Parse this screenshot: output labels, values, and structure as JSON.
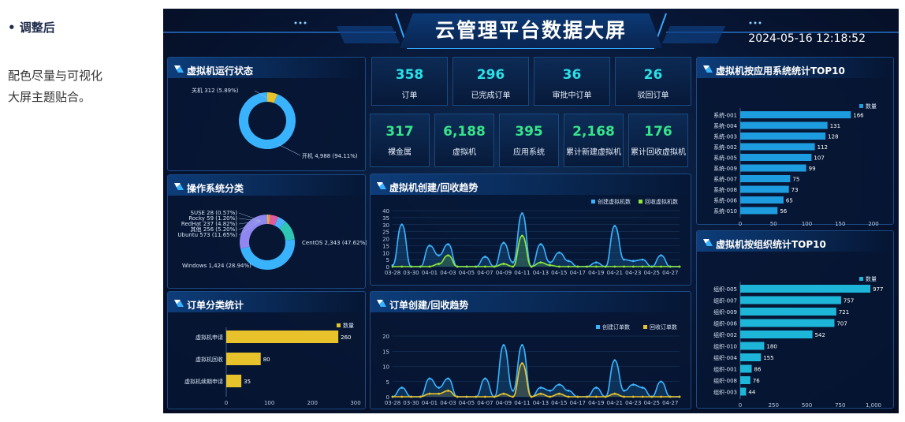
{
  "note": {
    "bullet": "• 调整后",
    "line1": "配色尽量与可视化",
    "line2": "大屏主题贴合。"
  },
  "header": {
    "title": "云管理平台数据大屏",
    "datetime": "2024-05-16  12:18:52"
  },
  "stats_row1": [
    {
      "value": "358",
      "label": "订单"
    },
    {
      "value": "296",
      "label": "已完成订单"
    },
    {
      "value": "36",
      "label": "审批中订单"
    },
    {
      "value": "26",
      "label": "驳回订单"
    }
  ],
  "stats_row2": [
    {
      "value": "317",
      "label": "裸金属"
    },
    {
      "value": "6,188",
      "label": "虚拟机"
    },
    {
      "value": "395",
      "label": "应用系统"
    },
    {
      "value": "2,168",
      "label": "累计新建虚拟机"
    },
    {
      "value": "176",
      "label": "累计回收虚拟机"
    }
  ],
  "panels": {
    "vm_status": "虚拟机运行状态",
    "os": "操作系统分类",
    "order_type": "订单分类统计",
    "vm_trend": "虚拟机创建/回收趋势",
    "order_trend": "订单创建/回收趋势",
    "app_top": "虚拟机按应用系统统计TOP10",
    "org_top": "虚拟机按组织统计TOP10"
  },
  "colors": {
    "cyan": "#29e1e6",
    "green": "#37e38a",
    "blue": "#3ab3ff",
    "yellow": "#e8c22a",
    "purple": "#8f86f0",
    "teal": "#2ec7b5"
  },
  "chart_data": [
    {
      "type": "pie",
      "id": "vm_status",
      "slices": [
        {
          "label": "关机",
          "value": 312,
          "pct": "5.89%"
        },
        {
          "label": "开机",
          "value": 4988,
          "pct": "94.11%"
        }
      ],
      "labels": [
        "关机 312 (5.89%)",
        "开机 4,988 (94.11%)"
      ]
    },
    {
      "type": "pie",
      "id": "os",
      "slices": [
        {
          "label": "SUSE",
          "value": 28,
          "pct": "0.57%"
        },
        {
          "label": "Rocky",
          "value": 59,
          "pct": "1.20%"
        },
        {
          "label": "RedHat",
          "value": 237,
          "pct": "4.82%"
        },
        {
          "label": "其他",
          "value": 256,
          "pct": "5.20%"
        },
        {
          "label": "Ubuntu",
          "value": 573,
          "pct": "11.65%"
        },
        {
          "label": "CentOS",
          "value": 2343,
          "pct": "47.62%"
        },
        {
          "label": "Windows",
          "value": 1424,
          "pct": "28.94%"
        }
      ],
      "labels": [
        "SUSE 28 (0.57%)",
        "Rocky 59 (1.20%)",
        "RedHat 237 (4.82%)",
        "其他 256 (5.20%)",
        "Ubuntu 573 (11.65%)",
        "CentOS 2,343 (47.62%)",
        "Windows 1,424 (28.94%)"
      ]
    },
    {
      "type": "bar",
      "id": "order_type",
      "orientation": "horizontal",
      "legend": "数量",
      "categories": [
        "虚拟机申请",
        "虚拟机回收",
        "虚拟机续期申请"
      ],
      "values": [
        260,
        80,
        35
      ],
      "ticks": [
        0,
        100,
        200,
        300
      ],
      "xlim": [
        0,
        300
      ]
    },
    {
      "type": "line",
      "id": "vm_trend",
      "x": [
        "03-28",
        "03-29",
        "03-30",
        "03-31",
        "04-01",
        "04-02",
        "04-03",
        "04-04",
        "04-05",
        "04-06",
        "04-07",
        "04-08",
        "04-09",
        "04-10",
        "04-11",
        "04-12",
        "04-13",
        "04-14",
        "04-15",
        "04-16",
        "04-17",
        "04-18",
        "04-19",
        "04-20",
        "04-21",
        "04-22",
        "04-23",
        "04-24",
        "04-25",
        "04-26",
        "04-27",
        "04-28"
      ],
      "xticks": [
        "03-28",
        "03-30",
        "04-01",
        "04-03",
        "04-05",
        "04-07",
        "04-09",
        "04-11",
        "04-13",
        "04-15",
        "04-17",
        "04-19",
        "04-21",
        "04-23",
        "04-25",
        "04-27"
      ],
      "series": [
        {
          "name": "创建虚拟机数",
          "values": [
            1,
            30,
            0,
            0,
            15,
            8,
            16,
            0,
            0,
            0,
            7,
            0,
            17,
            3,
            38,
            0,
            16,
            3,
            10,
            4,
            0,
            0,
            3,
            0,
            29,
            5,
            4,
            5,
            0,
            8,
            0,
            0
          ]
        },
        {
          "name": "回收虚拟机数",
          "values": [
            0,
            0,
            0,
            0,
            0,
            2,
            8,
            0,
            0,
            0,
            0,
            0,
            2,
            0,
            22,
            0,
            3,
            1,
            0,
            0,
            0,
            0,
            0,
            0,
            0,
            0,
            0,
            0,
            0,
            0,
            0,
            0
          ]
        }
      ],
      "ylim": [
        0,
        40
      ],
      "yticks": [
        0,
        5,
        10,
        15,
        20,
        25,
        30,
        35,
        40
      ]
    },
    {
      "type": "line",
      "id": "order_trend",
      "x": [
        "03-28",
        "03-29",
        "03-30",
        "03-31",
        "04-01",
        "04-02",
        "04-03",
        "04-04",
        "04-05",
        "04-06",
        "04-07",
        "04-08",
        "04-09",
        "04-10",
        "04-11",
        "04-12",
        "04-13",
        "04-14",
        "04-15",
        "04-16",
        "04-17",
        "04-18",
        "04-19",
        "04-20",
        "04-21",
        "04-22",
        "04-23",
        "04-24",
        "04-25",
        "04-26",
        "04-27",
        "04-28"
      ],
      "xticks": [
        "03-28",
        "03-30",
        "04-01",
        "04-03",
        "04-05",
        "04-07",
        "04-09",
        "04-11",
        "04-13",
        "04-15",
        "04-17",
        "04-19",
        "04-21",
        "04-23",
        "04-25",
        "04-27"
      ],
      "series": [
        {
          "name": "创建订单数",
          "values": [
            0,
            3,
            0,
            0,
            6,
            3,
            6,
            0,
            0,
            0,
            6,
            0,
            17,
            2,
            17,
            0,
            3,
            2,
            4,
            2,
            0,
            0,
            3,
            0,
            12,
            2,
            4,
            3,
            0,
            5,
            0,
            0
          ]
        },
        {
          "name": "回收订单数",
          "values": [
            0,
            0,
            0,
            0,
            1,
            1,
            2,
            0,
            0,
            0,
            0,
            0,
            1,
            0,
            11,
            0,
            1,
            0,
            1,
            0,
            0,
            0,
            0,
            0,
            1,
            0,
            0,
            0,
            0,
            0,
            0,
            0
          ]
        }
      ],
      "ylim": [
        0,
        20
      ],
      "yticks": [
        0,
        5,
        10,
        15,
        20
      ]
    },
    {
      "type": "bar",
      "id": "app_top",
      "orientation": "horizontal",
      "legend": "数量",
      "categories": [
        "系统-001",
        "系统-004",
        "系统-003",
        "系统-002",
        "系统-005",
        "系统-009",
        "系统-007",
        "系统-008",
        "系统-006",
        "系统-010"
      ],
      "values": [
        166,
        131,
        128,
        112,
        107,
        99,
        75,
        73,
        65,
        56
      ],
      "ticks": [
        0,
        50,
        100,
        150,
        200
      ],
      "xlim": [
        0,
        200
      ]
    },
    {
      "type": "bar",
      "id": "org_top",
      "orientation": "horizontal",
      "legend": "数量",
      "categories": [
        "组织-005",
        "组织-007",
        "组织-009",
        "组织-006",
        "组织-002",
        "组织-010",
        "组织-004",
        "组织-001",
        "组织-008",
        "组织-003"
      ],
      "values": [
        977,
        757,
        721,
        707,
        542,
        180,
        155,
        86,
        76,
        44
      ],
      "ticks": [
        "0",
        "250",
        "500",
        "750",
        "1,000"
      ],
      "xlim": [
        0,
        1000
      ]
    }
  ]
}
